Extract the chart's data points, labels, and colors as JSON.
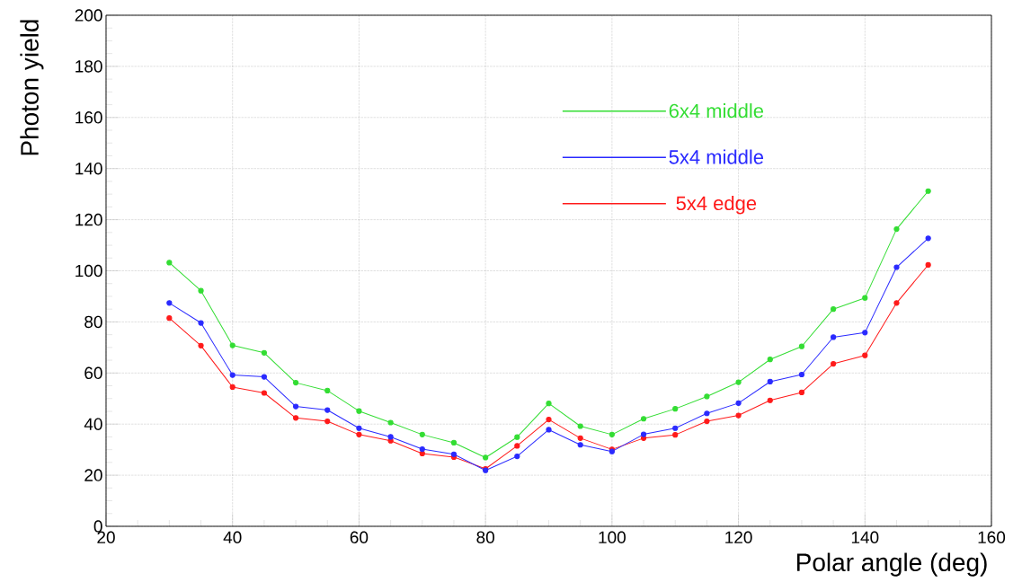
{
  "chart_data": {
    "type": "line",
    "xlabel": "Polar angle (deg)",
    "ylabel": "Photon yield",
    "x": [
      30,
      35,
      40,
      45,
      50,
      55,
      60,
      65,
      70,
      75,
      80,
      85,
      90,
      95,
      100,
      105,
      110,
      115,
      120,
      125,
      130,
      135,
      140,
      145,
      150
    ],
    "series": [
      {
        "name": "6x4 middle",
        "color": "#33dd33",
        "values": [
          103.2,
          92.2,
          70.8,
          67.9,
          56.2,
          53.1,
          45.1,
          40.6,
          35.9,
          32.7,
          26.9,
          34.9,
          48.1,
          39.2,
          35.9,
          42.1,
          46.0,
          50.8,
          56.4,
          65.3,
          70.4,
          85.0,
          89.4,
          116.3,
          131.2
        ]
      },
      {
        "name": "5x4 middle",
        "color": "#2a2aff",
        "values": [
          87.4,
          79.6,
          59.2,
          58.5,
          46.9,
          45.5,
          38.4,
          35.0,
          30.2,
          28.2,
          21.9,
          27.4,
          37.8,
          31.9,
          29.3,
          36.0,
          38.4,
          44.2,
          48.2,
          56.6,
          59.4,
          74.0,
          75.8,
          101.4,
          112.7
        ]
      },
      {
        "name": "5x4 edge",
        "color": "#ff1a1a",
        "values": [
          81.5,
          70.7,
          54.5,
          52.2,
          42.4,
          41.1,
          35.9,
          33.5,
          28.5,
          27.1,
          22.5,
          31.5,
          41.8,
          34.5,
          30.1,
          34.5,
          35.8,
          41.1,
          43.4,
          49.3,
          52.4,
          63.6,
          66.9,
          87.4,
          102.3
        ]
      }
    ],
    "xlim": [
      20,
      160
    ],
    "xticks": [
      20,
      40,
      60,
      80,
      100,
      120,
      140,
      160
    ],
    "ylim": [
      0,
      200
    ],
    "yticks": [
      0,
      20,
      40,
      60,
      80,
      100,
      120,
      140,
      160,
      180,
      200
    ],
    "grid": true,
    "legend": "top",
    "marker": "circle",
    "line_style": "solid"
  }
}
